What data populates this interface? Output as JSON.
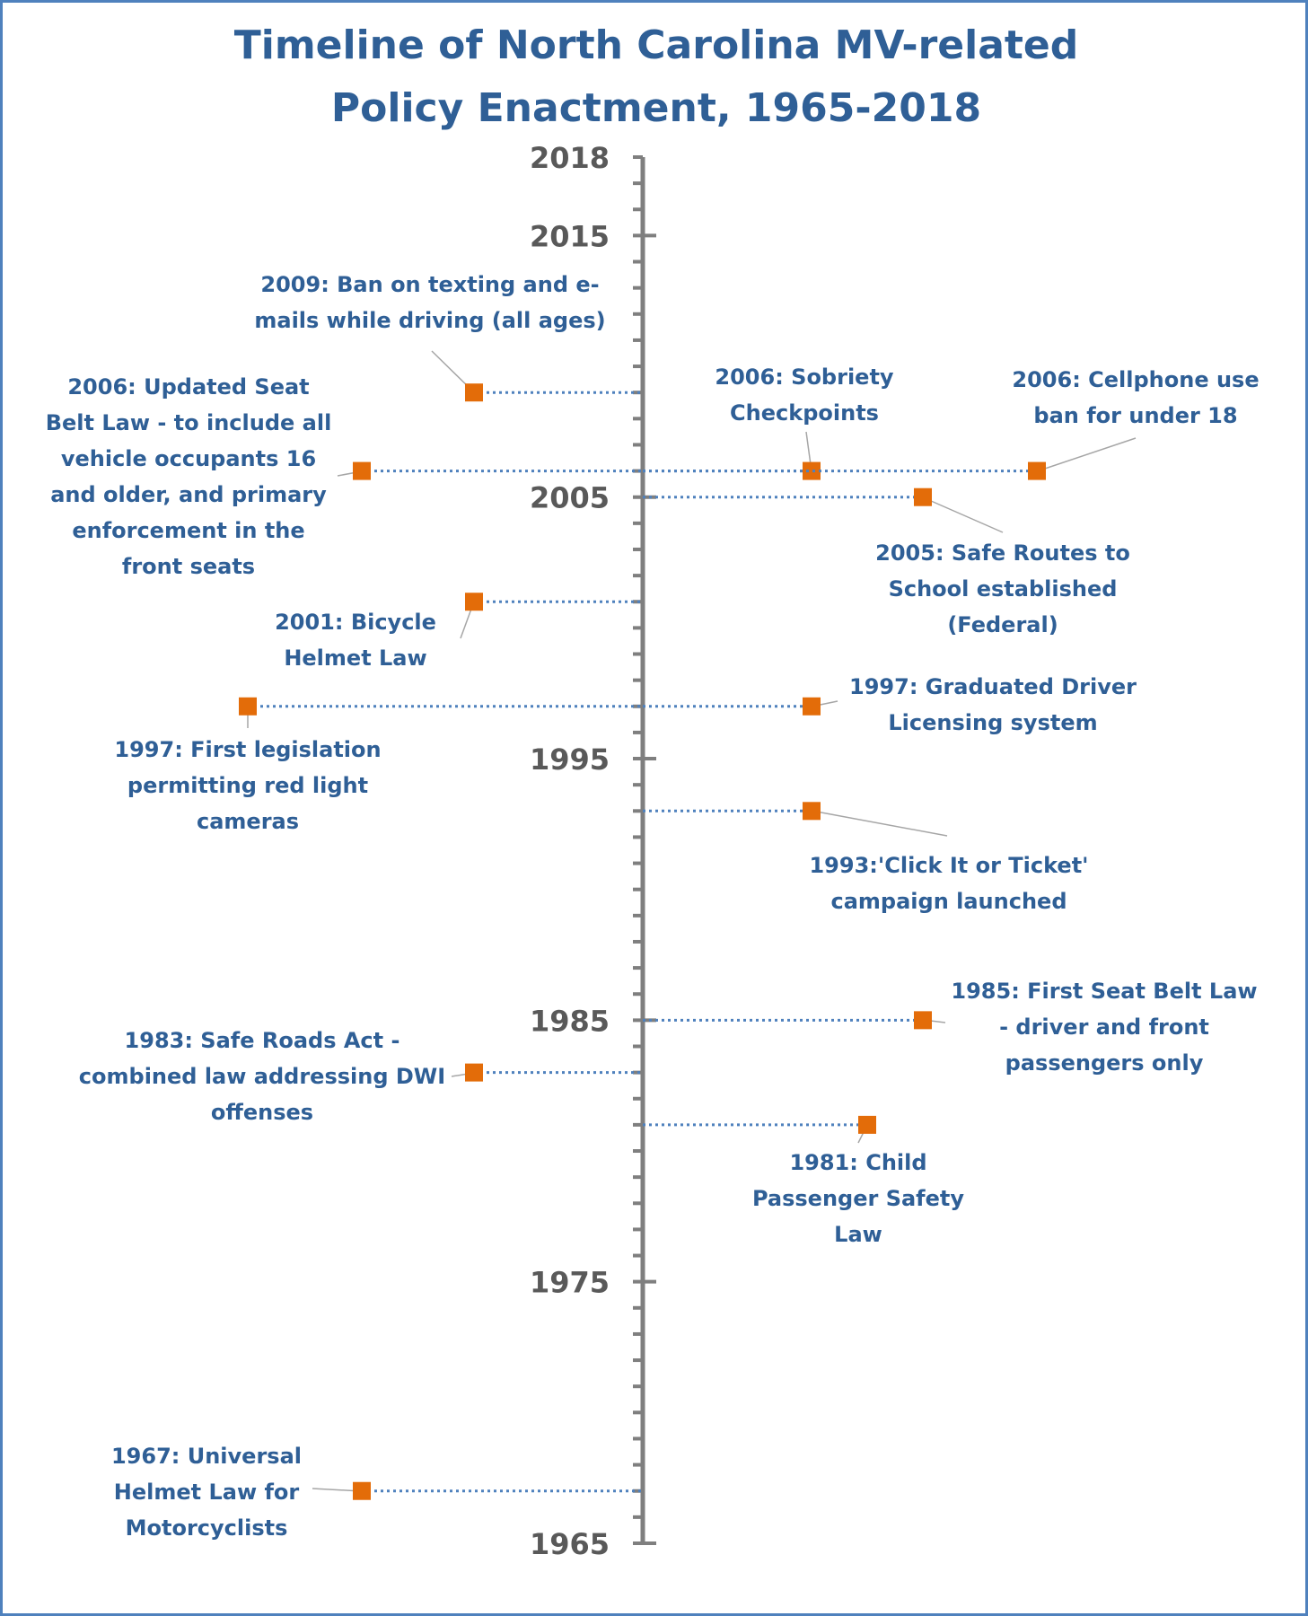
{
  "chart_data": {
    "type": "timeline",
    "title": [
      "Timeline of North Carolina MV-related",
      "Policy Enactment, 1965-2018"
    ],
    "axis": {
      "min": 1965,
      "max": 2018,
      "tick_labels": [
        "2018",
        "2015",
        "2005",
        "1995",
        "1985",
        "1975",
        "1965"
      ],
      "minor_tick_interval": 1
    },
    "colors": {
      "title": "#2f5f96",
      "label": "#2f5f96",
      "marker": "#e36c09",
      "connector": "#4f81bd",
      "axis": "#7f7f7f",
      "axis_label": "#595959",
      "border": "#4f81bd"
    },
    "events": [
      {
        "year": 2009,
        "lines": [
          "2009: Ban on texting and e-",
          "mails while driving (all ages)"
        ]
      },
      {
        "year": 2006,
        "lines": [
          "2006: Updated Seat",
          "Belt Law - to include all",
          "vehicle occupants 16",
          "and older, and primary",
          "enforcement in the",
          "front seats"
        ]
      },
      {
        "year": 2006,
        "lines": [
          "2006: Sobriety",
          "Checkpoints"
        ]
      },
      {
        "year": 2006,
        "lines": [
          "2006: Cellphone use",
          "ban for under 18"
        ]
      },
      {
        "year": 2005,
        "lines": [
          "2005: Safe Routes to",
          "School established",
          "(Federal)"
        ]
      },
      {
        "year": 2001,
        "lines": [
          "2001: Bicycle",
          "Helmet Law"
        ]
      },
      {
        "year": 1997,
        "lines": [
          "1997: Graduated Driver",
          "Licensing system"
        ]
      },
      {
        "year": 1997,
        "lines": [
          "1997: First legislation",
          "permitting red light",
          "cameras"
        ]
      },
      {
        "year": 1993,
        "lines": [
          "1993:'Click It or Ticket'",
          "campaign launched"
        ]
      },
      {
        "year": 1985,
        "lines": [
          "1985: First Seat Belt Law",
          "- driver and front",
          "passengers only"
        ]
      },
      {
        "year": 1983,
        "lines": [
          "1983: Safe Roads Act -",
          "combined law addressing DWI",
          "offenses"
        ]
      },
      {
        "year": 1981,
        "lines": [
          "1981: Child",
          "Passenger Safety",
          "Law"
        ]
      },
      {
        "year": 1967,
        "lines": [
          "1967: Universal",
          "Helmet Law for",
          "Motorcyclists"
        ]
      }
    ]
  }
}
